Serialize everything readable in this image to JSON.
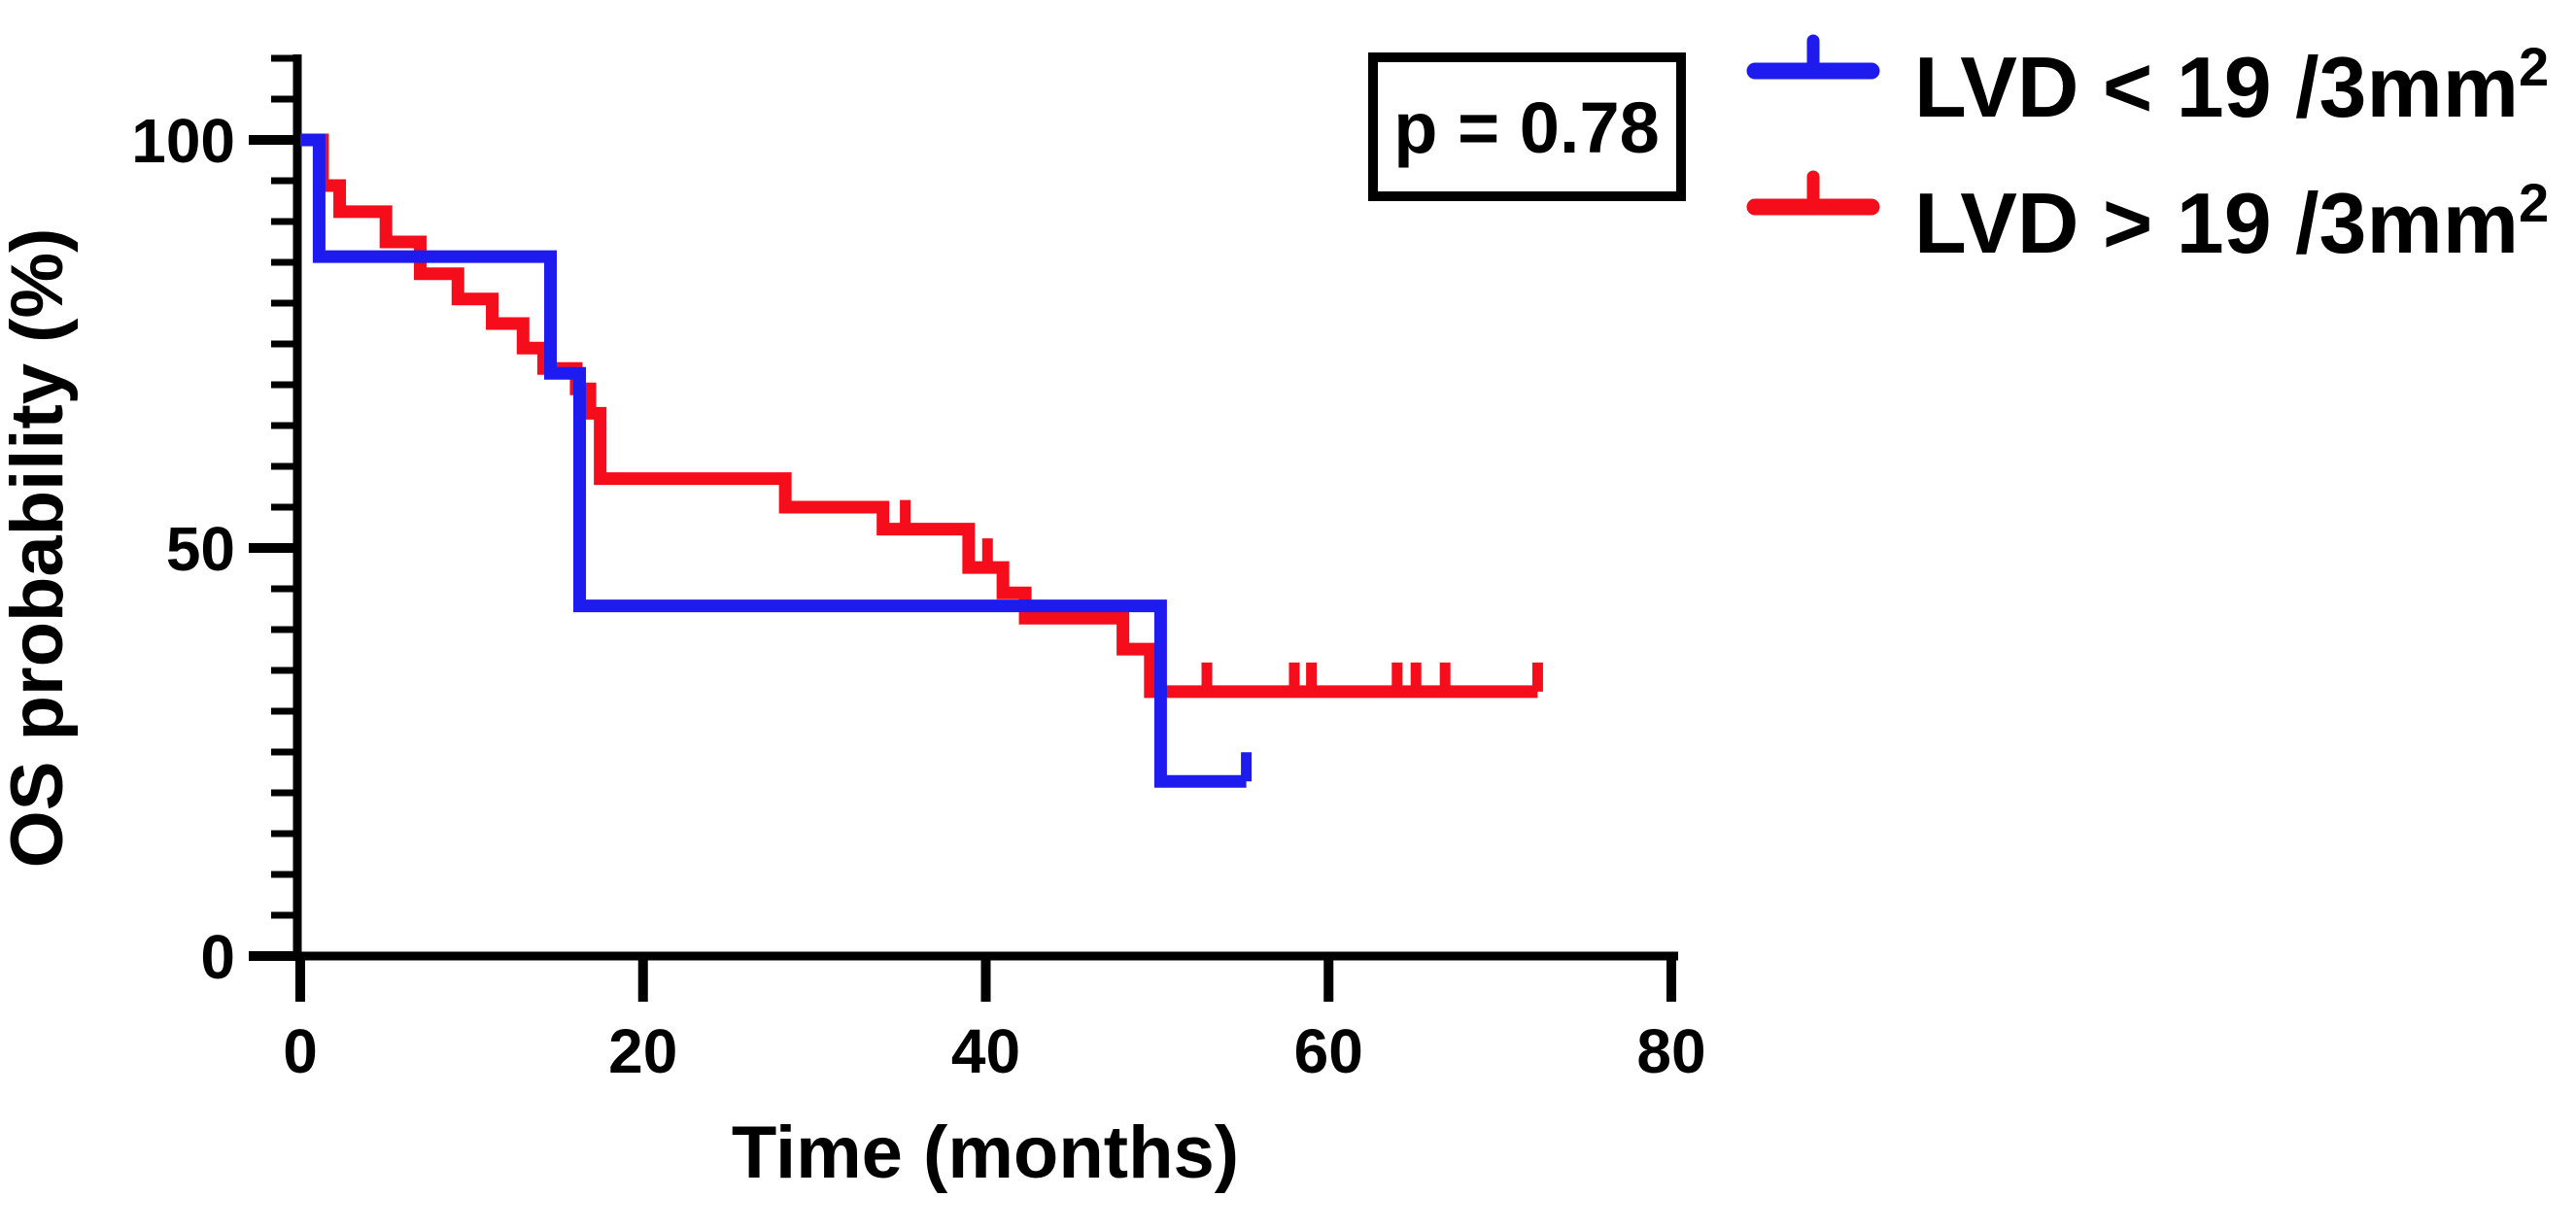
{
  "colors": {
    "blue": "#1E1BEE",
    "red": "#F50D1B",
    "axis": "#000000",
    "background": "#FFFFFF"
  },
  "pvalue_box": {
    "text": "p = 0.78"
  },
  "chart_data": {
    "type": "line",
    "subtype": "kaplan-meier-step",
    "title": "",
    "xlabel": "Time (months)",
    "ylabel": "OS probability (%)",
    "x_ticks": [
      0,
      20,
      40,
      60,
      80
    ],
    "y_major_ticks": [
      0,
      50,
      100
    ],
    "y_minor_tick_step": 5,
    "y_axis_top_value": 110,
    "xlim": [
      0,
      80
    ],
    "ylim": [
      0,
      100
    ],
    "grid": false,
    "legend_position": "top-right-outside",
    "annotation": "p = 0.78",
    "series": [
      {
        "name": "LVD < 19 /3mm²",
        "legend_base": "LVD < 19 /3mm",
        "legend_sup": "2",
        "color": "#1E1BEE",
        "start": [
          0,
          100
        ],
        "points": [
          [
            1.1,
            85.7
          ],
          [
            14.6,
            71.4
          ],
          [
            16.3,
            42.9
          ],
          [
            50.2,
            21.4
          ]
        ],
        "end_month": 55.2,
        "censor_months": [
          55.2
        ]
      },
      {
        "name": "LVD > 19 /3mm²",
        "legend_base": "LVD > 19 /3mm",
        "legend_sup": "2",
        "color": "#F50D1B",
        "start": [
          0,
          100
        ],
        "points": [
          [
            1.3,
            94.4
          ],
          [
            2.3,
            91.2
          ],
          [
            5.0,
            87.5
          ],
          [
            7.0,
            83.6
          ],
          [
            9.2,
            80.5
          ],
          [
            11.2,
            77.5
          ],
          [
            13.0,
            74.5
          ],
          [
            14.2,
            72.0
          ],
          [
            16.1,
            69.5
          ],
          [
            16.9,
            66.5
          ],
          [
            17.5,
            58.5
          ],
          [
            28.3,
            55.0
          ],
          [
            34.0,
            52.3
          ],
          [
            39.0,
            47.6
          ],
          [
            41.0,
            44.5
          ],
          [
            42.3,
            41.4
          ],
          [
            48.0,
            37.6
          ],
          [
            49.6,
            32.4
          ]
        ],
        "end_month": 72.2,
        "censor_months": [
          35.3,
          40.1,
          52.9,
          58.0,
          59.0,
          64.0,
          65.1,
          66.8,
          72.2
        ]
      }
    ]
  }
}
